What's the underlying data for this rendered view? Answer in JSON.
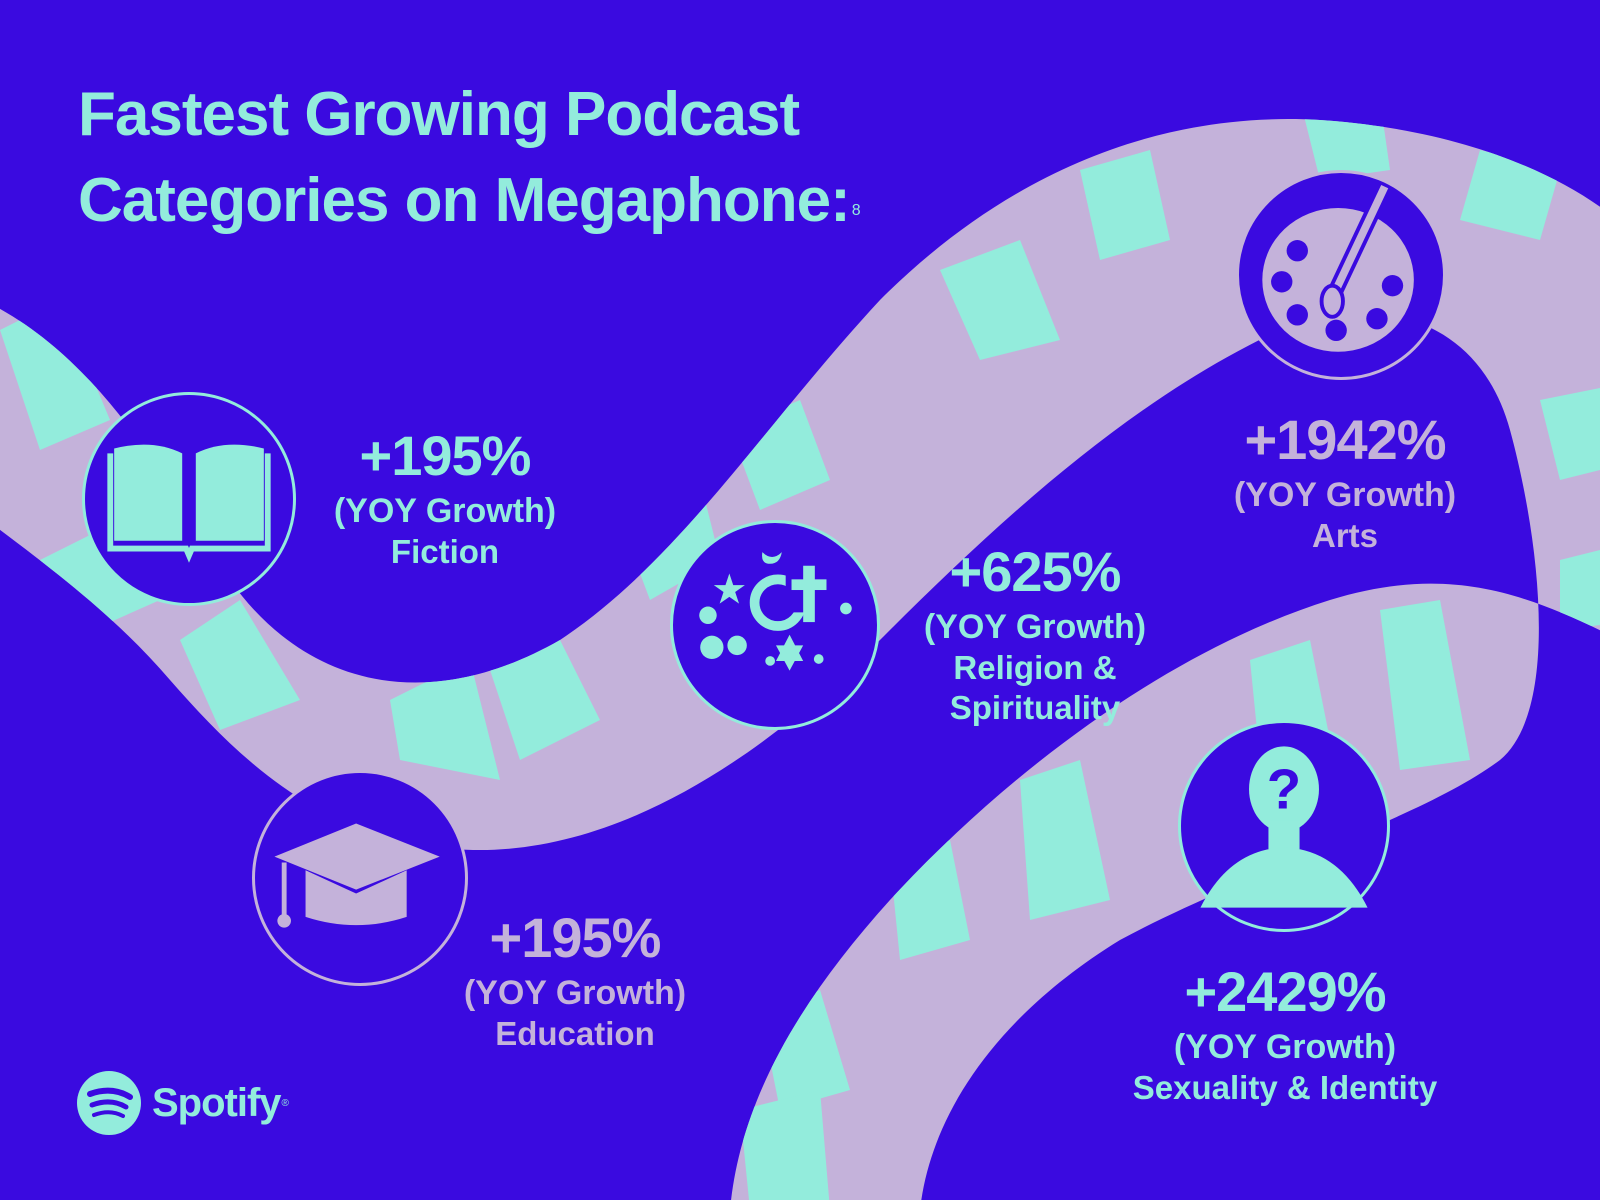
{
  "title": {
    "line1": "Fastest Growing Podcast",
    "line2": "Categories on Megaphone:",
    "footnote": "8"
  },
  "colors": {
    "background": "#3a0ae0",
    "mint": "#93ecdc",
    "lavender": "#c4b2da"
  },
  "categories": [
    {
      "id": "fiction",
      "icon": "open-book-icon",
      "growth": "+195%",
      "label": "(YOY Growth)",
      "category": "Fiction"
    },
    {
      "id": "education",
      "icon": "graduation-cap-icon",
      "growth": "+195%",
      "label": "(YOY Growth)",
      "category": "Education"
    },
    {
      "id": "religion",
      "icon": "religious-symbols-icon",
      "growth": "+625%",
      "label": "(YOY Growth)",
      "category_line1": "Religion &",
      "category_line2": "Spirituality"
    },
    {
      "id": "arts",
      "icon": "paint-palette-icon",
      "growth": "+1942%",
      "label": "(YOY Growth)",
      "category": "Arts"
    },
    {
      "id": "sexuality",
      "icon": "question-head-icon",
      "growth": "+2429%",
      "label": "(YOY Growth)",
      "category": "Sexuality & Identity"
    }
  ],
  "brand": {
    "name": "Spotify",
    "icon": "spotify-logo-icon"
  }
}
